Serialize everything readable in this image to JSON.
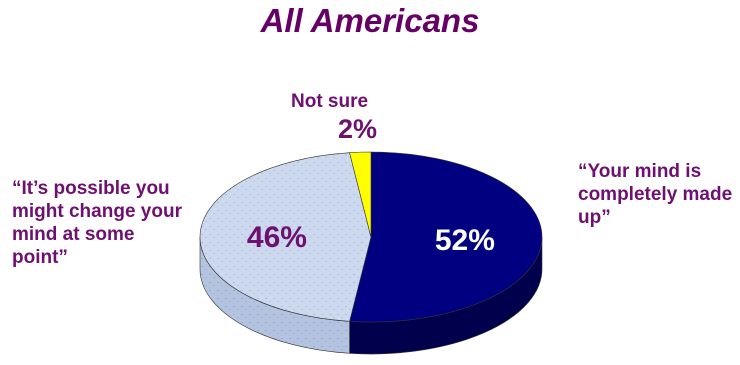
{
  "chart_data": {
    "type": "pie",
    "title": "All Americans",
    "slices": [
      {
        "label": "“Your mind is completely made up”",
        "value": 52,
        "display": "52%",
        "color": "#000080"
      },
      {
        "label": "“It’s possible you might change your mind at some point”",
        "value": 46,
        "display": "46%",
        "color": "#c8d6ec"
      },
      {
        "label": "Not sure",
        "value": 2,
        "display": "2%",
        "color": "#ffff00"
      }
    ]
  }
}
